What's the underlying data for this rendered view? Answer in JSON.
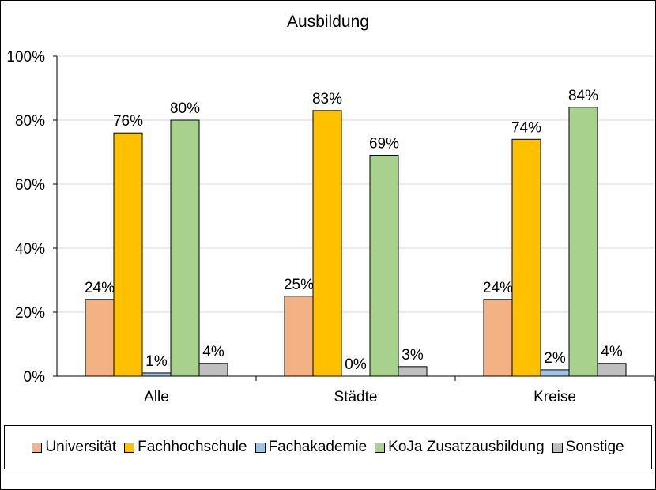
{
  "chart_data": {
    "type": "bar",
    "title": "Ausbildung",
    "categories": [
      "Alle",
      "Städte",
      "Kreise"
    ],
    "y_ticks": [
      "0%",
      "20%",
      "40%",
      "60%",
      "80%",
      "100%"
    ],
    "ylim": [
      0,
      100
    ],
    "grid": true,
    "legend_position": "bottom",
    "series": [
      {
        "name": "Universität",
        "color": "#F4B183",
        "values": [
          24,
          25,
          24
        ],
        "labels": [
          "24%",
          "25%",
          "24%"
        ]
      },
      {
        "name": "Fachhochschule",
        "color": "#FFC000",
        "values": [
          76,
          83,
          74
        ],
        "labels": [
          "76%",
          "83%",
          "74%"
        ]
      },
      {
        "name": "Fachakademie",
        "color": "#9DC3E6",
        "values": [
          1,
          0,
          2
        ],
        "labels": [
          "1%",
          "0%",
          "2%"
        ]
      },
      {
        "name": "KoJa Zusatzausbildung",
        "color": "#A9D18E",
        "values": [
          80,
          69,
          84
        ],
        "labels": [
          "80%",
          "69%",
          "84%"
        ]
      },
      {
        "name": "Sonstige",
        "color": "#BFBFBF",
        "values": [
          4,
          3,
          4
        ],
        "labels": [
          "4%",
          "3%",
          "4%"
        ]
      }
    ]
  }
}
